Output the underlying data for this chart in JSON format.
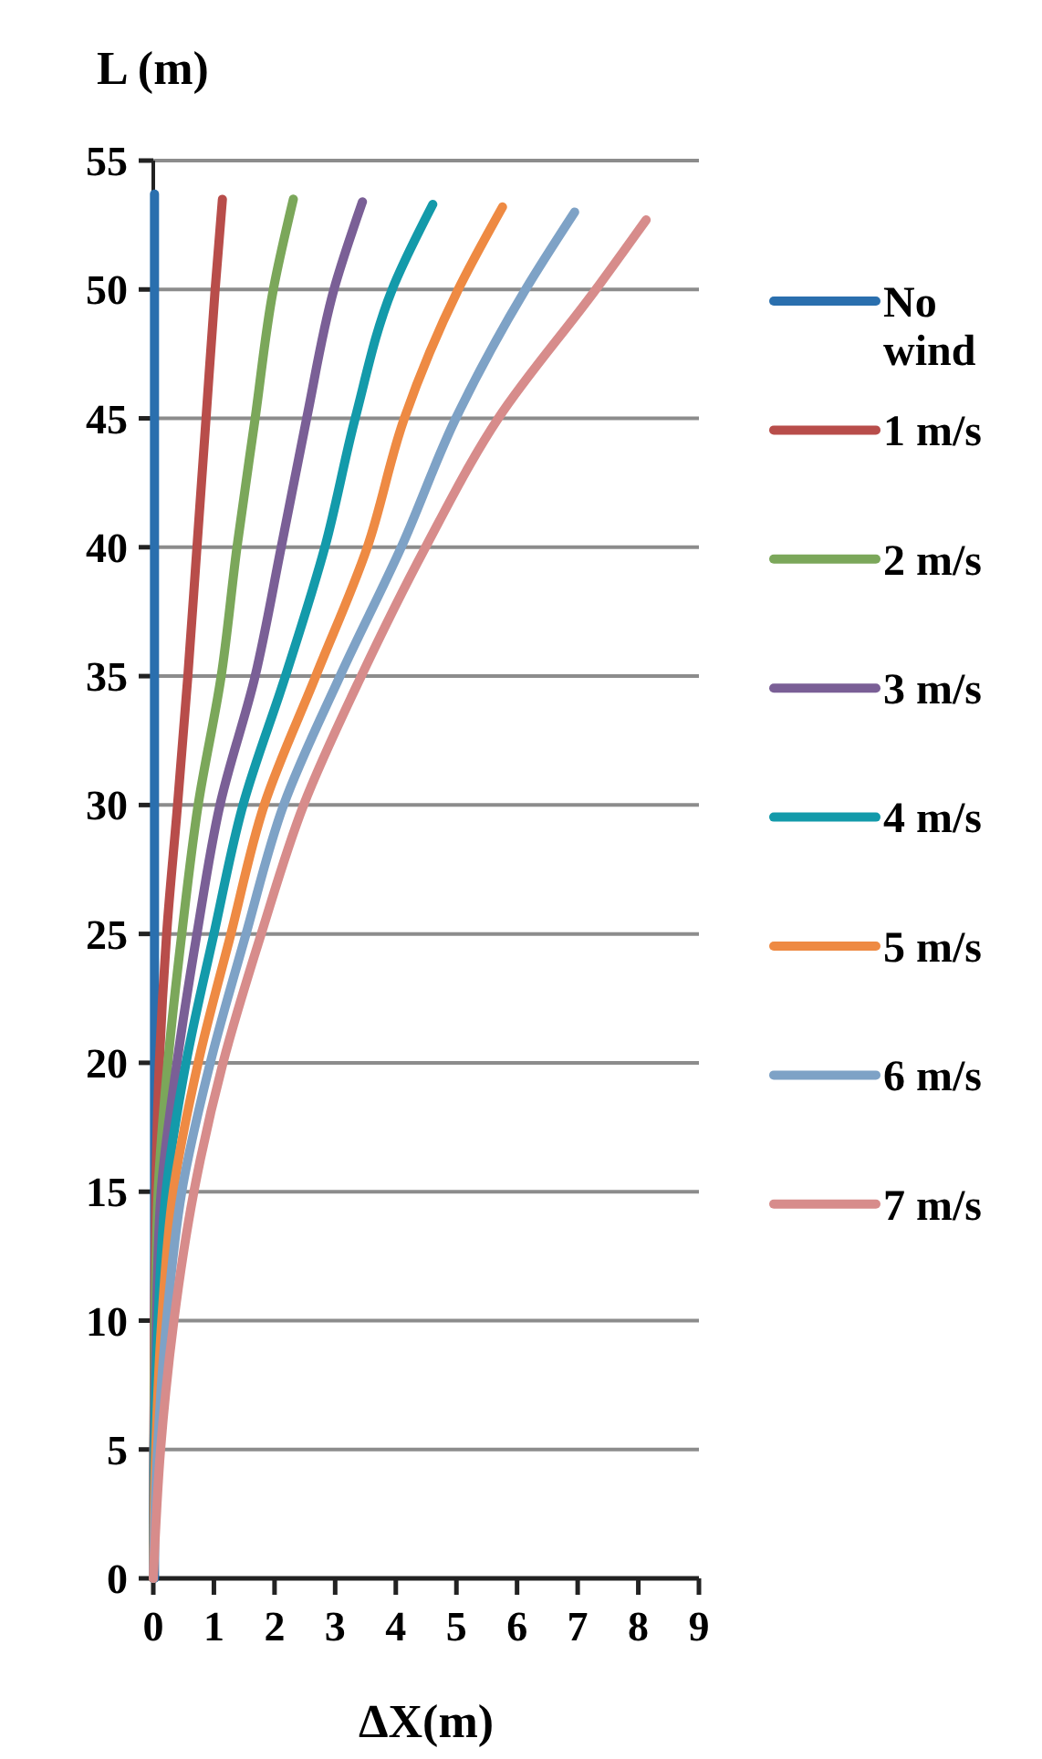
{
  "chart_data": {
    "type": "line",
    "title": "L (m)",
    "xlabel": "ΔX(m)",
    "xlim": [
      0,
      9
    ],
    "xticks": [
      0,
      1,
      2,
      3,
      4,
      5,
      6,
      7,
      8,
      9
    ],
    "ylim": [
      0,
      55
    ],
    "yticks": [
      0,
      5,
      10,
      15,
      20,
      25,
      30,
      35,
      40,
      45,
      50,
      55
    ],
    "grid": "y",
    "legend": "right",
    "marker": "none",
    "line_style": "solid",
    "series": [
      {
        "name": "No wind",
        "color": "#2a6fae",
        "x": [
          0.02,
          0.02,
          0.02,
          0.02,
          0.02,
          0.02,
          0.02,
          0.02,
          0.02,
          0.02,
          0.02,
          0.02
        ],
        "values": [
          0,
          5,
          10,
          15,
          20,
          25,
          30,
          35,
          40,
          45,
          50,
          53.7
        ]
      },
      {
        "name": "1 m/s",
        "color": "#b84d4a",
        "x": [
          0,
          0.01,
          0.02,
          0.04,
          0.1,
          0.22,
          0.4,
          0.57,
          0.72,
          0.87,
          1.02,
          1.14
        ],
        "values": [
          0,
          5,
          10,
          15,
          20,
          25,
          30,
          35,
          40,
          45,
          50,
          53.5
        ]
      },
      {
        "name": "2 m/s",
        "color": "#7ba75a",
        "x": [
          0,
          0.01,
          0.03,
          0.08,
          0.24,
          0.47,
          0.74,
          1.12,
          1.38,
          1.68,
          1.98,
          2.31
        ],
        "values": [
          0,
          5,
          10,
          15,
          20,
          25,
          30,
          35,
          40,
          45,
          50,
          53.5
        ]
      },
      {
        "name": "3 m/s",
        "color": "#7a5f96",
        "x": [
          0,
          0.01,
          0.05,
          0.13,
          0.39,
          0.72,
          1.1,
          1.68,
          2.11,
          2.53,
          2.98,
          3.45
        ],
        "values": [
          0,
          5,
          10,
          15,
          20,
          25,
          30,
          35,
          40,
          45,
          50,
          53.4
        ]
      },
      {
        "name": "4 m/s",
        "color": "#139aaa",
        "x": [
          0,
          0.02,
          0.08,
          0.21,
          0.54,
          1.0,
          1.48,
          2.18,
          2.83,
          3.33,
          3.94,
          4.61
        ],
        "values": [
          0,
          5,
          10,
          15,
          20,
          25,
          30,
          35,
          40,
          45,
          50,
          53.3
        ]
      },
      {
        "name": "5 m/s",
        "color": "#ee8a43",
        "x": [
          0,
          0.04,
          0.14,
          0.33,
          0.74,
          1.28,
          1.83,
          2.68,
          3.53,
          4.14,
          5.03,
          5.76
        ],
        "values": [
          0,
          5,
          10,
          15,
          20,
          25,
          30,
          35,
          40,
          45,
          50,
          53.2
        ]
      },
      {
        "name": "6 m/s",
        "color": "#7ea2c6",
        "x": [
          0,
          0.07,
          0.22,
          0.47,
          0.94,
          1.53,
          2.15,
          3.08,
          4.09,
          4.99,
          6.14,
          6.95
        ],
        "values": [
          0,
          5,
          10,
          15,
          20,
          25,
          30,
          35,
          40,
          45,
          50,
          53.0
        ]
      },
      {
        "name": "7 m/s",
        "color": "#d78c8b",
        "x": [
          0,
          0.12,
          0.34,
          0.67,
          1.15,
          1.78,
          2.48,
          3.43,
          4.49,
          5.69,
          7.3,
          8.13
        ],
        "values": [
          0,
          5,
          10,
          15,
          20,
          25,
          30,
          35,
          40,
          45,
          50,
          52.7
        ]
      }
    ]
  }
}
